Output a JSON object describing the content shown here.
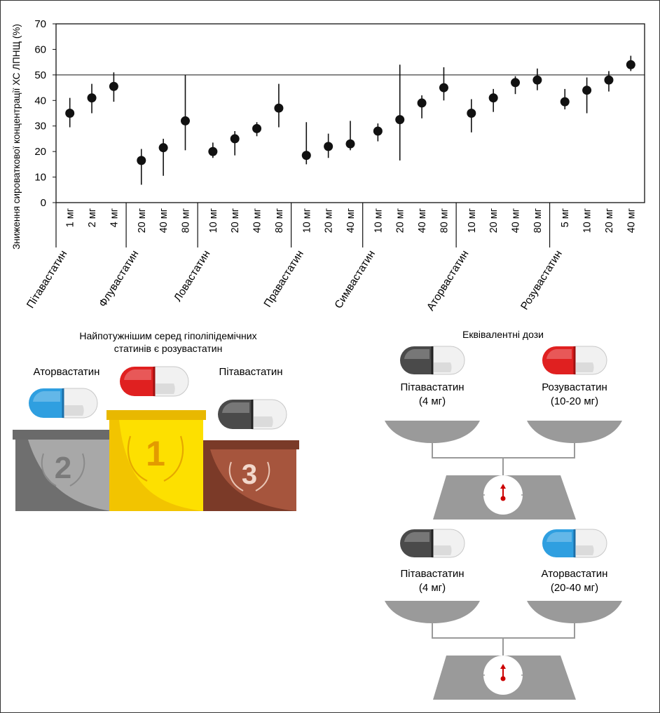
{
  "chart_data": {
    "type": "scatter",
    "ylabel": "Зниження сироваткової концентрації ХС ЛПНЩ (%)",
    "ylim": [
      0,
      70
    ],
    "yticks": [
      0,
      10,
      20,
      30,
      40,
      50,
      60,
      70
    ],
    "reference_line": 50,
    "groups": [
      {
        "name": "Пітавастатин",
        "doses": [
          "1 мг",
          "2 мг",
          "4 мг"
        ]
      },
      {
        "name": "Флувастатин",
        "doses": [
          "20 мг",
          "40 мг",
          "80 мг"
        ]
      },
      {
        "name": "Ловастатин",
        "doses": [
          "10 мг",
          "20 мг",
          "40 мг",
          "80 мг"
        ]
      },
      {
        "name": "Правастатин",
        "doses": [
          "10 мг",
          "20 мг",
          "40 мг"
        ]
      },
      {
        "name": "Симвастатин",
        "doses": [
          "10 мг",
          "20 мг",
          "40 мг",
          "80 мг"
        ]
      },
      {
        "name": "Аторвастатин",
        "doses": [
          "10 мг",
          "20 мг",
          "40 мг",
          "80 мг"
        ]
      },
      {
        "name": "Розувастатин",
        "doses": [
          "5 мг",
          "10 мг",
          "20 мг",
          "40 мг"
        ]
      }
    ],
    "points": [
      {
        "group": "Пітавастатин",
        "dose": "1 мг",
        "value": 35,
        "low": 29.5,
        "high": 41
      },
      {
        "group": "Пітавастатин",
        "dose": "2 мг",
        "value": 41,
        "low": 35,
        "high": 46.5
      },
      {
        "group": "Пітавастатин",
        "dose": "4 мг",
        "value": 45.5,
        "low": 39.5,
        "high": 51
      },
      {
        "group": "Флувастатин",
        "dose": "20 мг",
        "value": 16.5,
        "low": 7,
        "high": 21
      },
      {
        "group": "Флувастатин",
        "dose": "40 мг",
        "value": 21.5,
        "low": 10.5,
        "high": 25
      },
      {
        "group": "Флувастатин",
        "dose": "80 мг",
        "value": 32,
        "low": 20.5,
        "high": 50
      },
      {
        "group": "Ловастатин",
        "dose": "10 мг",
        "value": 20,
        "low": 17.5,
        "high": 23.5
      },
      {
        "group": "Ловастатин",
        "dose": "20 мг",
        "value": 25,
        "low": 18.5,
        "high": 28
      },
      {
        "group": "Ловастатин",
        "dose": "40 мг",
        "value": 29,
        "low": 26,
        "high": 31.5
      },
      {
        "group": "Ловастатин",
        "dose": "80 мг",
        "value": 37,
        "low": 29.5,
        "high": 46.5
      },
      {
        "group": "Правастатин",
        "dose": "10 мг",
        "value": 18.5,
        "low": 15,
        "high": 31.5
      },
      {
        "group": "Правастатин",
        "dose": "20 мг",
        "value": 22,
        "low": 17.5,
        "high": 27
      },
      {
        "group": "Правастатин",
        "dose": "40 мг",
        "value": 23,
        "low": 20.5,
        "high": 32
      },
      {
        "group": "Симвастатин",
        "dose": "10 мг",
        "value": 28,
        "low": 24,
        "high": 31
      },
      {
        "group": "Симвастатин",
        "dose": "20 мг",
        "value": 32.5,
        "low": 16.5,
        "high": 54
      },
      {
        "group": "Симвастатин",
        "dose": "40 мг",
        "value": 39,
        "low": 33,
        "high": 42
      },
      {
        "group": "Симвастатин",
        "dose": "80 мг",
        "value": 45,
        "low": 40,
        "high": 53
      },
      {
        "group": "Аторвастатин",
        "dose": "10 мг",
        "value": 35,
        "low": 27.5,
        "high": 40.5
      },
      {
        "group": "Аторвастатин",
        "dose": "20 мг",
        "value": 41,
        "low": 35.5,
        "high": 44.5
      },
      {
        "group": "Аторвастатин",
        "dose": "40 мг",
        "value": 47,
        "low": 42.5,
        "high": 49.5
      },
      {
        "group": "Аторвастатин",
        "dose": "80 мг",
        "value": 48,
        "low": 44,
        "high": 52.5
      },
      {
        "group": "Розувастатин",
        "dose": "5 мг",
        "value": 39.5,
        "low": 36.5,
        "high": 44.5
      },
      {
        "group": "Розувастатин",
        "dose": "10 мг",
        "value": 44,
        "low": 35,
        "high": 49
      },
      {
        "group": "Розувастатин",
        "dose": "20 мг",
        "value": 48,
        "low": 43.5,
        "high": 51.5
      },
      {
        "group": "Розувастатин",
        "dose": "40 мг",
        "value": 54,
        "low": 51.5,
        "high": 57.5
      }
    ]
  },
  "podium": {
    "title": "Найпотужнішим серед гіполіпідемічних статинів є розувастатин",
    "first": {
      "name": "",
      "rank": "1",
      "capsule": "red"
    },
    "second": {
      "name": "Аторвастатин",
      "rank": "2",
      "capsule": "blue"
    },
    "third": {
      "name": "Пітавастатин",
      "rank": "3",
      "capsule": "grey"
    }
  },
  "equivalence": {
    "title": "Еквівалентні дози",
    "pairs": [
      {
        "left": {
          "name": "Пітавастатин",
          "dose": "(4 мг)",
          "capsule": "grey"
        },
        "right": {
          "name": "Розувастатин",
          "dose": "(10-20 мг)",
          "capsule": "red"
        }
      },
      {
        "left": {
          "name": "Пітавастатин",
          "dose": "(4 мг)",
          "capsule": "grey"
        },
        "right": {
          "name": "Аторвастатин",
          "dose": "(20-40 мг)",
          "capsule": "blue"
        }
      }
    ]
  },
  "colors": {
    "red_capsule": "#e02020",
    "blue_capsule": "#2f9fe0",
    "grey_capsule": "#4a4a4a",
    "gold": "#f5d000",
    "silver": "#a5a5a5",
    "bronze": "#a0503a",
    "scale": "#9a9a9a",
    "needle": "#cc0000"
  }
}
